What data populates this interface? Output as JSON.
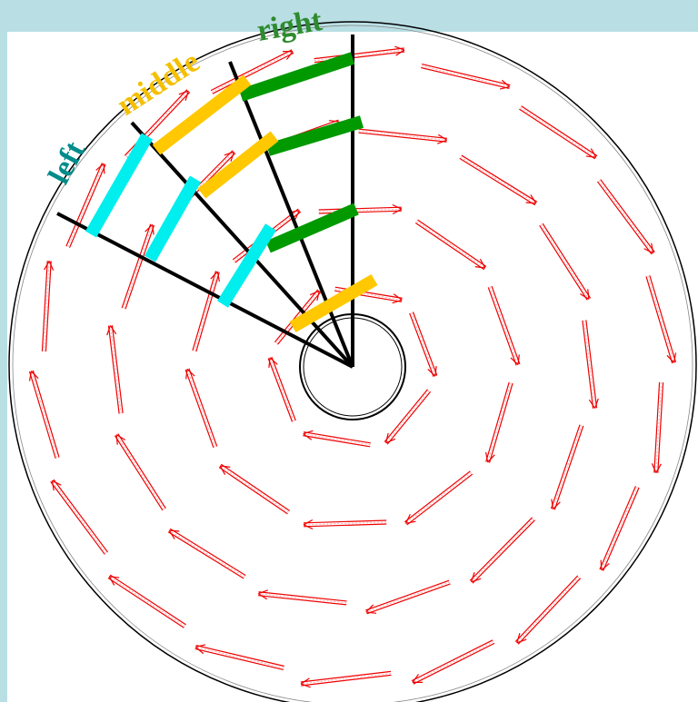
{
  "labels": {
    "left": "left",
    "middle": "middle",
    "right": "right"
  }
}
